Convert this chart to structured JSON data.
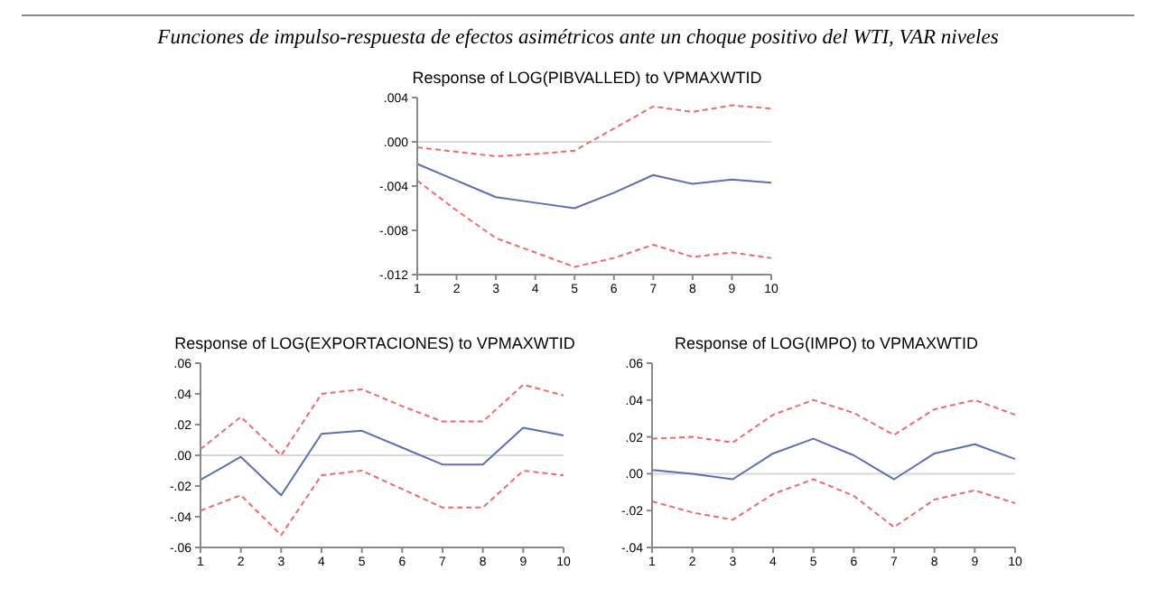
{
  "chart_data": [
    {
      "type": "line",
      "title": "Response of LOG(PIBVALLED) to VPMAXWTID",
      "annotations": [
        "Funciones de impulso-respuesta de efectos asimétricos ante un choque positivo del WTI, VAR niveles"
      ],
      "categories": [
        "1",
        "2",
        "3",
        "4",
        "5",
        "6",
        "7",
        "8",
        "9",
        "10"
      ],
      "series": [
        {
          "color": "#5b6fb5",
          "line_style": "solid",
          "values": [
            -0.002,
            -0.0035,
            -0.005,
            -0.0055,
            -0.006,
            -0.0046,
            -0.003,
            -0.0038,
            -0.0034,
            -0.0037
          ]
        },
        {
          "color": "#f06a6a",
          "line_style": "dashed",
          "values": [
            -0.0005,
            -0.0009,
            -0.0013,
            -0.0011,
            -0.0008,
            0.0012,
            0.0032,
            0.0027,
            0.0033,
            0.003
          ]
        },
        {
          "color": "#f06a6a",
          "line_style": "dashed",
          "values": [
            -0.0035,
            -0.0062,
            -0.0087,
            -0.01,
            -0.0113,
            -0.0105,
            -0.0093,
            -0.0104,
            -0.01,
            -0.0105
          ]
        }
      ],
      "ylim": [
        -0.012,
        0.004
      ],
      "yticks": [
        {
          "value": -0.012,
          "label": "-.012"
        },
        {
          "value": -0.008,
          "label": "-.008"
        },
        {
          "value": -0.004,
          "label": "-.004"
        },
        {
          "value": 0,
          "label": ".000"
        },
        {
          "value": 0.004,
          "label": ".004"
        }
      ],
      "ref_lines": [
        {
          "axis": "y",
          "value": 0,
          "color": "#d8d8d8"
        }
      ],
      "grid": false,
      "legend": false
    },
    {
      "type": "line",
      "title": "Response of LOG(EXPORTACIONES) to VPMAXWTID",
      "categories": [
        "1",
        "2",
        "3",
        "4",
        "5",
        "6",
        "7",
        "8",
        "9",
        "10"
      ],
      "series": [
        {
          "color": "#5b6fb5",
          "line_style": "solid",
          "values": [
            -0.016,
            -0.001,
            -0.026,
            0.014,
            0.016,
            0.005,
            -0.006,
            -0.006,
            0.018,
            0.013
          ]
        },
        {
          "color": "#f06a6a",
          "line_style": "dashed",
          "values": [
            0.004,
            0.025,
            0.0,
            0.04,
            0.043,
            0.032,
            0.022,
            0.022,
            0.046,
            0.039
          ]
        },
        {
          "color": "#f06a6a",
          "line_style": "dashed",
          "values": [
            -0.036,
            -0.026,
            -0.052,
            -0.013,
            -0.01,
            -0.022,
            -0.034,
            -0.034,
            -0.01,
            -0.013
          ]
        }
      ],
      "ylim": [
        -0.06,
        0.06
      ],
      "yticks": [
        {
          "value": -0.06,
          "label": "-.06"
        },
        {
          "value": -0.04,
          "label": "-.04"
        },
        {
          "value": -0.02,
          "label": "-.02"
        },
        {
          "value": 0,
          "label": ".00"
        },
        {
          "value": 0.02,
          "label": ".02"
        },
        {
          "value": 0.04,
          "label": ".04"
        },
        {
          "value": 0.06,
          "label": ".06"
        }
      ],
      "ref_lines": [
        {
          "axis": "y",
          "value": 0,
          "color": "#d8d8d8"
        }
      ],
      "grid": false,
      "legend": false
    },
    {
      "type": "line",
      "title": "Response of LOG(IMPO) to VPMAXWTID",
      "categories": [
        "1",
        "2",
        "3",
        "4",
        "5",
        "6",
        "7",
        "8",
        "9",
        "10"
      ],
      "series": [
        {
          "color": "#5b6fb5",
          "line_style": "solid",
          "values": [
            0.002,
            0.0,
            -0.003,
            0.011,
            0.019,
            0.01,
            -0.003,
            0.011,
            0.016,
            0.008
          ]
        },
        {
          "color": "#f06a6a",
          "line_style": "dashed",
          "values": [
            0.019,
            0.02,
            0.017,
            0.032,
            0.04,
            0.033,
            0.021,
            0.035,
            0.04,
            0.032
          ]
        },
        {
          "color": "#f06a6a",
          "line_style": "dashed",
          "values": [
            -0.015,
            -0.021,
            -0.025,
            -0.011,
            -0.003,
            -0.012,
            -0.029,
            -0.014,
            -0.009,
            -0.016
          ]
        }
      ],
      "ylim": [
        -0.04,
        0.06
      ],
      "yticks": [
        {
          "value": -0.04,
          "label": "-.04"
        },
        {
          "value": -0.02,
          "label": "-.02"
        },
        {
          "value": 0,
          "label": ".00"
        },
        {
          "value": 0.02,
          "label": ".02"
        },
        {
          "value": 0.04,
          "label": ".04"
        },
        {
          "value": 0.06,
          "label": ".06"
        }
      ],
      "ref_lines": [
        {
          "axis": "y",
          "value": 0,
          "color": "#d8d8d8"
        }
      ],
      "grid": false,
      "legend": false
    }
  ]
}
